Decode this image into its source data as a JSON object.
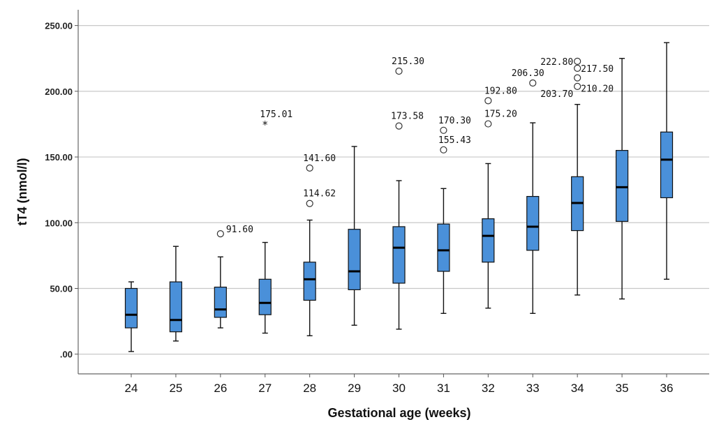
{
  "chart_data": {
    "type": "boxplot",
    "xlabel": "Gestational age (weeks)",
    "ylabel": "tT4 (nmol/l)",
    "ylim": [
      -15,
      262
    ],
    "yticks": [
      0,
      50,
      100,
      150,
      200,
      250
    ],
    "ytick_labels": [
      ".00",
      "50.00",
      "100.00",
      "150.00",
      "200.00",
      "250.00"
    ],
    "grid": true,
    "box_color": "#4a90d9",
    "categories": [
      "24",
      "25",
      "26",
      "27",
      "28",
      "29",
      "30",
      "31",
      "32",
      "33",
      "34",
      "35",
      "36"
    ],
    "boxes": [
      {
        "min": 2,
        "q1": 20,
        "median": 30,
        "q3": 50,
        "max": 55
      },
      {
        "min": 10,
        "q1": 17,
        "median": 26,
        "q3": 55,
        "max": 82
      },
      {
        "min": 20,
        "q1": 28,
        "median": 34,
        "q3": 51,
        "max": 74
      },
      {
        "min": 16,
        "q1": 30,
        "median": 39,
        "q3": 57,
        "max": 85
      },
      {
        "min": 14,
        "q1": 41,
        "median": 57,
        "q3": 70,
        "max": 102
      },
      {
        "min": 22,
        "q1": 49,
        "median": 63,
        "q3": 95,
        "max": 158
      },
      {
        "min": 19,
        "q1": 54,
        "median": 81,
        "q3": 97,
        "max": 132
      },
      {
        "min": 31,
        "q1": 63,
        "median": 79,
        "q3": 99,
        "max": 126
      },
      {
        "min": 35,
        "q1": 70,
        "median": 90,
        "q3": 103,
        "max": 145
      },
      {
        "min": 31,
        "q1": 79,
        "median": 97,
        "q3": 120,
        "max": 176
      },
      {
        "min": 45,
        "q1": 94,
        "median": 115,
        "q3": 135,
        "max": 190
      },
      {
        "min": 42,
        "q1": 101,
        "median": 127,
        "q3": 155,
        "max": 225
      },
      {
        "min": 57,
        "q1": 119,
        "median": 148,
        "q3": 169,
        "max": 237
      }
    ],
    "outliers": [
      {
        "category": "26",
        "value": 91.6,
        "label": "91.60",
        "marker": "circle"
      },
      {
        "category": "27",
        "value": 175.01,
        "label": "175.01",
        "marker": "star"
      },
      {
        "category": "28",
        "value": 141.6,
        "label": "141.60",
        "marker": "circle"
      },
      {
        "category": "28",
        "value": 114.62,
        "label": "114.62",
        "marker": "circle"
      },
      {
        "category": "30",
        "value": 215.3,
        "label": "215.30",
        "marker": "circle"
      },
      {
        "category": "30",
        "value": 173.58,
        "label": "173.58",
        "marker": "circle"
      },
      {
        "category": "31",
        "value": 170.3,
        "label": "170.30",
        "marker": "circle"
      },
      {
        "category": "31",
        "value": 155.43,
        "label": "155.43",
        "marker": "circle"
      },
      {
        "category": "32",
        "value": 192.8,
        "label": "192.80",
        "marker": "circle"
      },
      {
        "category": "32",
        "value": 175.2,
        "label": "175.20",
        "marker": "circle"
      },
      {
        "category": "33",
        "value": 206.3,
        "label": "206.30",
        "marker": "circle"
      },
      {
        "category": "34",
        "value": 222.8,
        "label": "222.80",
        "marker": "circle"
      },
      {
        "category": "34",
        "value": 217.5,
        "label": "217.50",
        "marker": "circle"
      },
      {
        "category": "34",
        "value": 210.2,
        "label": "210.20",
        "marker": "circle"
      },
      {
        "category": "34",
        "value": 203.7,
        "label": "203.70",
        "marker": "circle"
      }
    ]
  }
}
